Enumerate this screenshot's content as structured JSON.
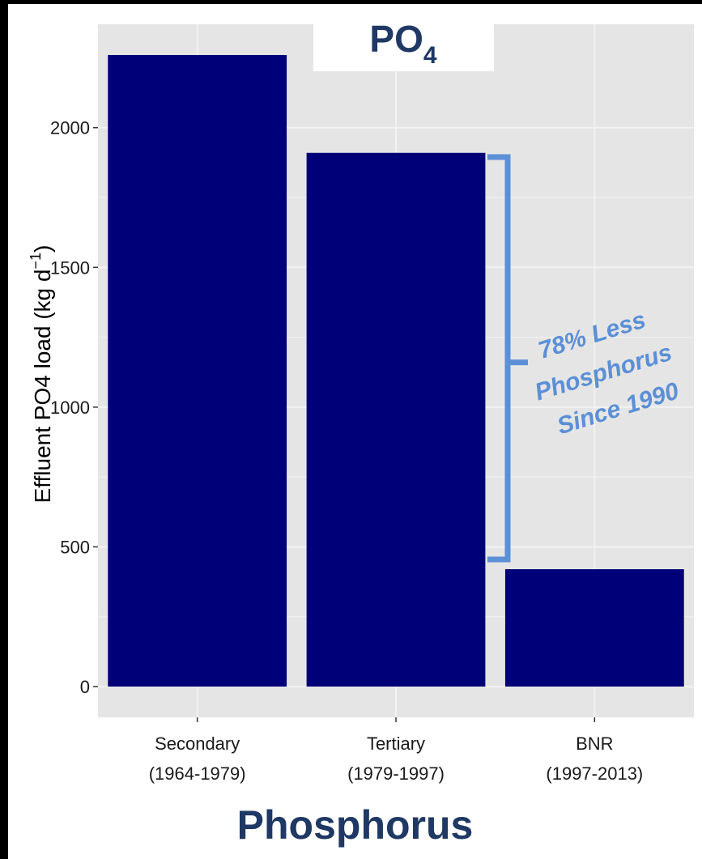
{
  "caption": "Phosphorus",
  "colors": {
    "bar": "#000078",
    "panel": "#e5e5e5",
    "grid": "#f2f2f2",
    "annotation": "#5b8fd6",
    "title": "#1f3864"
  },
  "chart_data": {
    "type": "bar",
    "title_main": "PO",
    "title_sub": "4",
    "ylabel": "Effluent PO4 load (kg d",
    "ylabel_sup": "−1",
    "ylabel_close": ")",
    "categories": [
      {
        "name": "Secondary",
        "period": "(1964-1979)"
      },
      {
        "name": "Tertiary",
        "period": "(1979-1997)"
      },
      {
        "name": "BNR",
        "period": "(1997-2013)"
      }
    ],
    "values": [
      2260,
      1910,
      420
    ],
    "ylim": [
      -110,
      2370
    ],
    "yticks": [
      0,
      500,
      1000,
      1500,
      2000
    ],
    "grid": true,
    "annotation": {
      "lines": [
        "78% Less",
        "Phosphorus",
        "Since 1990"
      ],
      "bracket_range": [
        455,
        1895
      ],
      "bracket_mid": 1160
    }
  }
}
